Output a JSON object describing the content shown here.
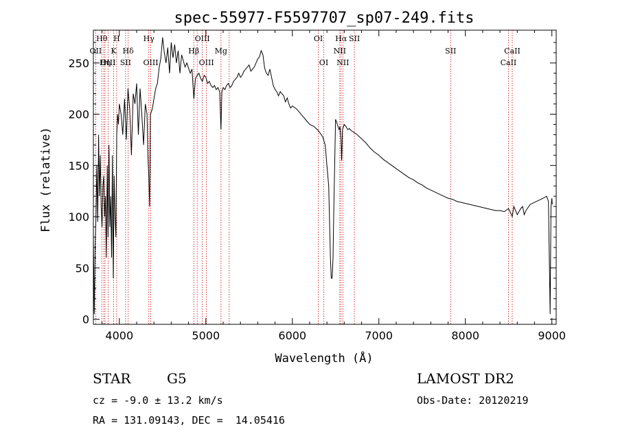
{
  "chart_data": {
    "type": "line",
    "title": "spec-55977-F5597707_sp07-249.fits",
    "xlabel": "Wavelength (Å)",
    "ylabel": "Flux (relative)",
    "xlim": [
      3700,
      9050
    ],
    "ylim": [
      -5,
      282
    ],
    "xticks": [
      4000,
      5000,
      6000,
      7000,
      8000,
      9000
    ],
    "yticks": [
      0,
      50,
      100,
      150,
      200,
      250
    ],
    "grid": false,
    "line_color": "#000000",
    "marker_color": "#cc0000",
    "series": [
      {
        "x": [
          3700,
          3710,
          3720,
          3730,
          3740,
          3750,
          3760,
          3770,
          3780,
          3790,
          3800,
          3810,
          3820,
          3830,
          3840,
          3850,
          3860,
          3870,
          3880,
          3890,
          3900,
          3910,
          3920,
          3930,
          3940,
          3950,
          3960,
          3970,
          3980,
          3990,
          4000,
          4020,
          4040,
          4060,
          4080,
          4100,
          4120,
          4140,
          4160,
          4180,
          4200,
          4220,
          4240,
          4260,
          4280,
          4300,
          4320,
          4330,
          4340,
          4350,
          4360,
          4380,
          4400,
          4420,
          4440,
          4460,
          4480,
          4500,
          4520,
          4540,
          4560,
          4580,
          4600,
          4620,
          4640,
          4660,
          4680,
          4700,
          4720,
          4740,
          4760,
          4780,
          4800,
          4820,
          4840,
          4861,
          4880,
          4900,
          4920,
          4940,
          4960,
          4980,
          5000,
          5020,
          5040,
          5060,
          5080,
          5100,
          5120,
          5140,
          5160,
          5175,
          5185,
          5200,
          5220,
          5240,
          5260,
          5280,
          5300,
          5320,
          5340,
          5360,
          5380,
          5400,
          5420,
          5440,
          5460,
          5480,
          5500,
          5520,
          5540,
          5560,
          5580,
          5600,
          5620,
          5640,
          5660,
          5680,
          5700,
          5720,
          5740,
          5760,
          5780,
          5800,
          5820,
          5840,
          5860,
          5880,
          5900,
          5920,
          5940,
          5960,
          5980,
          6000,
          6050,
          6100,
          6150,
          6200,
          6250,
          6300,
          6350,
          6380,
          6400,
          6420,
          6440,
          6450,
          6460,
          6470,
          6480,
          6500,
          6520,
          6540,
          6550,
          6562,
          6570,
          6580,
          6600,
          6620,
          6640,
          6660,
          6680,
          6700,
          6750,
          6800,
          6850,
          6900,
          6950,
          7000,
          7050,
          7100,
          7150,
          7200,
          7250,
          7300,
          7350,
          7400,
          7450,
          7500,
          7550,
          7600,
          7650,
          7700,
          7750,
          7800,
          7850,
          7900,
          7950,
          8000,
          8050,
          8100,
          8150,
          8200,
          8250,
          8300,
          8350,
          8400,
          8450,
          8498,
          8510,
          8542,
          8560,
          8600,
          8640,
          8662,
          8680,
          8700,
          8750,
          8800,
          8850,
          8900,
          8940,
          8960,
          8980,
          8990,
          9000,
          9005
        ],
        "values": [
          80,
          5,
          70,
          100,
          150,
          95,
          180,
          120,
          160,
          110,
          90,
          130,
          140,
          100,
          120,
          60,
          150,
          80,
          170,
          90,
          120,
          60,
          160,
          40,
          140,
          100,
          80,
          180,
          200,
          190,
          210,
          200,
          180,
          215,
          175,
          225,
          205,
          160,
          220,
          210,
          230,
          180,
          225,
          200,
          170,
          210,
          200,
          160,
          140,
          110,
          200,
          205,
          215,
          225,
          230,
          245,
          255,
          275,
          260,
          250,
          265,
          240,
          270,
          255,
          268,
          250,
          262,
          240,
          258,
          252,
          246,
          250,
          245,
          240,
          244,
          215,
          235,
          238,
          240,
          235,
          232,
          238,
          236,
          230,
          232,
          228,
          226,
          228,
          224,
          226,
          222,
          185,
          222,
          226,
          224,
          228,
          230,
          226,
          228,
          232,
          234,
          236,
          240,
          236,
          238,
          242,
          244,
          246,
          248,
          242,
          244,
          246,
          250,
          254,
          256,
          262,
          258,
          245,
          240,
          238,
          244,
          236,
          228,
          224,
          222,
          218,
          222,
          220,
          218,
          212,
          216,
          210,
          206,
          208,
          205,
          200,
          195,
          190,
          188,
          184,
          178,
          170,
          150,
          130,
          60,
          40,
          40,
          60,
          110,
          195,
          190,
          185,
          188,
          175,
          155,
          185,
          190,
          188,
          185,
          186,
          184,
          183,
          180,
          176,
          172,
          167,
          163,
          160,
          156,
          153,
          150,
          147,
          144,
          141,
          138,
          136,
          133,
          131,
          128,
          126,
          124,
          122,
          120,
          118,
          117,
          115,
          114,
          113,
          112,
          111,
          110,
          109,
          108,
          107,
          106,
          106,
          105,
          108,
          106,
          100,
          110,
          102,
          108,
          110,
          102,
          106,
          112,
          114,
          116,
          118,
          120,
          115,
          5,
          110,
          118,
          112
        ]
      }
    ],
    "line_markers": [
      {
        "label": "Hθ",
        "x": 3797,
        "row": 0
      },
      {
        "label": "H",
        "x": 3969,
        "row": 0
      },
      {
        "label": "Hγ",
        "x": 4341,
        "row": 0
      },
      {
        "label": "OIII",
        "x": 4959,
        "row": 0
      },
      {
        "label": "OI",
        "x": 6300,
        "row": 0
      },
      {
        "label": "Hα",
        "x": 6563,
        "row": 0
      },
      {
        "label": "SII",
        "x": 6717,
        "row": 0
      },
      {
        "label": "OII",
        "x": 3727,
        "row": 1
      },
      {
        "label": "K",
        "x": 3934,
        "row": 1
      },
      {
        "label": "Hδ",
        "x": 4102,
        "row": 1
      },
      {
        "label": "Hβ",
        "x": 4861,
        "row": 1
      },
      {
        "label": "Mg",
        "x": 5175,
        "row": 1
      },
      {
        "label": "NII",
        "x": 6548,
        "row": 1
      },
      {
        "label": "SII",
        "x": 7830,
        "row": 1
      },
      {
        "label": "CaII",
        "x": 8542,
        "row": 1
      },
      {
        "label": "OIII",
        "x": 3870,
        "row": 2
      },
      {
        "label": "Hη",
        "x": 3835,
        "row": 2
      },
      {
        "label": "SII",
        "x": 4072,
        "row": 2
      },
      {
        "label": "OIII",
        "x": 4363,
        "row": 2
      },
      {
        "label": "OIII",
        "x": 5007,
        "row": 2
      },
      {
        "label": "OI",
        "x": 6363,
        "row": 2
      },
      {
        "label": "NII",
        "x": 6584,
        "row": 2
      },
      {
        "label": "CaII",
        "x": 8498,
        "row": 2
      }
    ],
    "extra_marker_lines": [
      3820,
      4900,
      5270
    ]
  },
  "footer": {
    "object_type": "STAR",
    "subclass": "G5",
    "survey": "LAMOST DR2",
    "cz": "cz = -9.0 ± 13.2 km/s",
    "obs_date": "Obs-Date: 20120219",
    "coords": "RA = 131.09143, DEC =  14.05416"
  }
}
